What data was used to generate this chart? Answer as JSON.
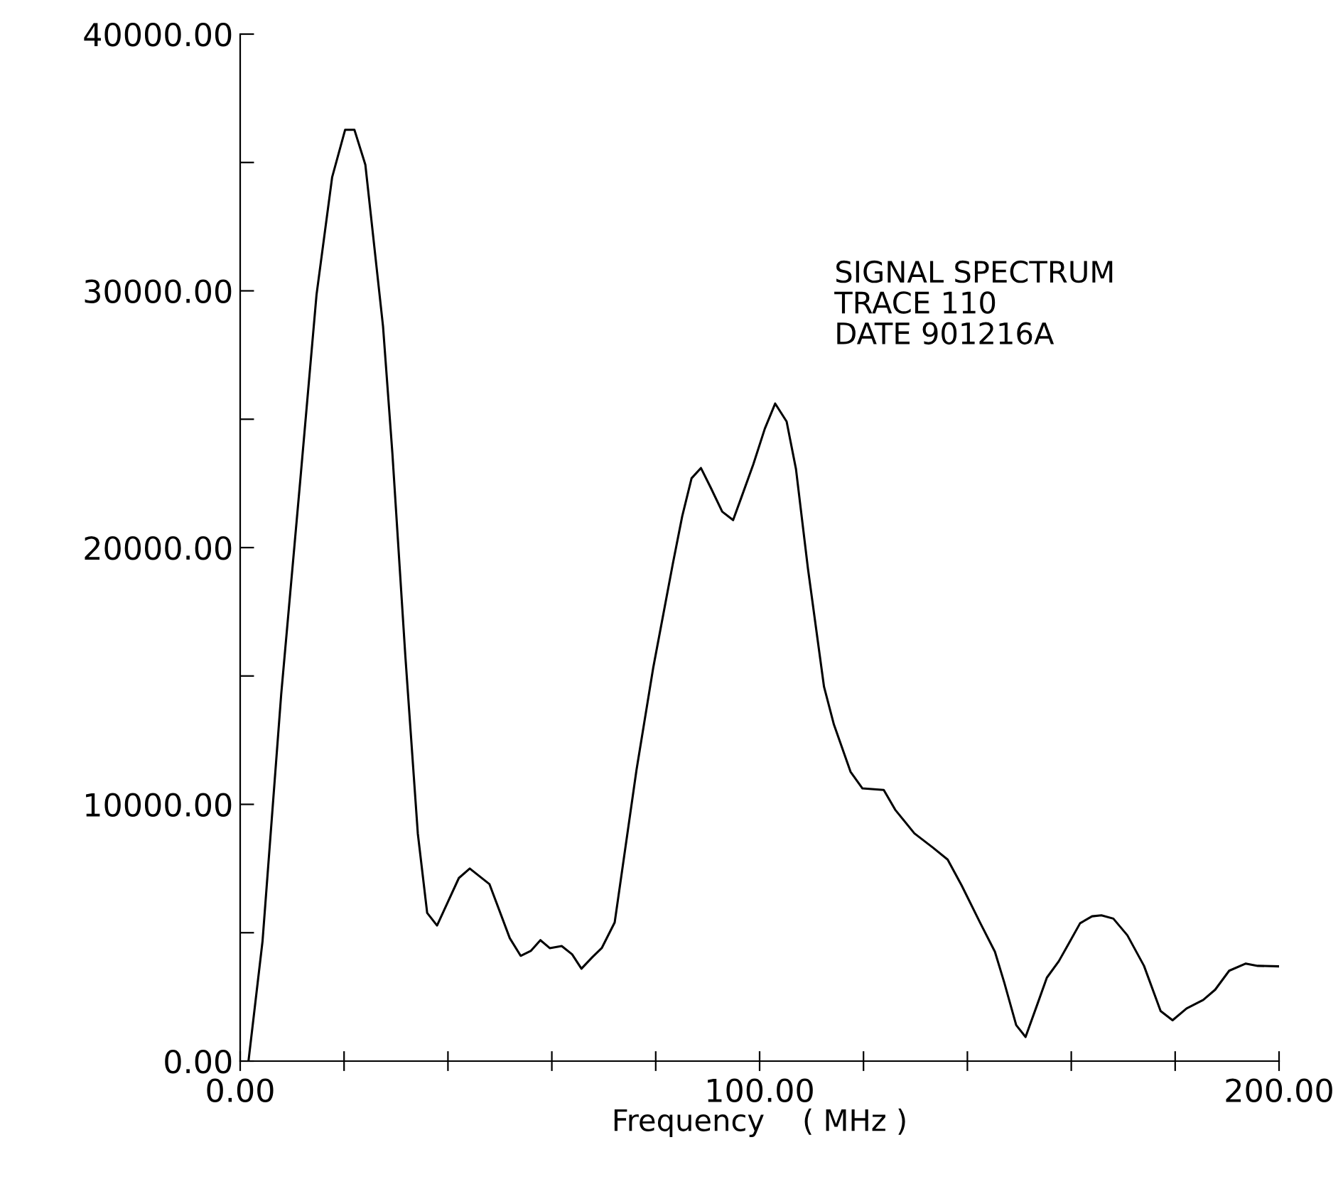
{
  "chart_data": {
    "type": "line",
    "xlabel": "Frequency    ( MHz )",
    "annotations": [
      "SIGNAL SPECTRUM",
      "TRACE 110",
      "DATE 901216A"
    ],
    "xlim": [
      0,
      200
    ],
    "ylim": [
      0,
      40000
    ],
    "xticks": [
      {
        "value": 0,
        "label": "0.00"
      },
      {
        "value": 20,
        "label": null
      },
      {
        "value": 40,
        "label": null
      },
      {
        "value": 60,
        "label": null
      },
      {
        "value": 80,
        "label": null
      },
      {
        "value": 100,
        "label": "100.00"
      },
      {
        "value": 120,
        "label": null
      },
      {
        "value": 140,
        "label": null
      },
      {
        "value": 160,
        "label": null
      },
      {
        "value": 180,
        "label": null
      },
      {
        "value": 200,
        "label": "200.00"
      }
    ],
    "yticks": [
      {
        "value": 0,
        "label": "0.00"
      },
      {
        "value": 5000,
        "label": null
      },
      {
        "value": 10000,
        "label": "10000.00"
      },
      {
        "value": 15000,
        "label": null
      },
      {
        "value": 20000,
        "label": "20000.00"
      },
      {
        "value": 25000,
        "label": null
      },
      {
        "value": 30000,
        "label": "30000.00"
      },
      {
        "value": 35000,
        "label": null
      },
      {
        "value": 40000,
        "label": "40000.00"
      }
    ],
    "grid": false,
    "legend": false,
    "marker": "none",
    "line_style": "solid",
    "series": [
      {
        "color": "#000000",
        "x": [
          1.6,
          4.3,
          7.9,
          11.6,
          14.7,
          17.7,
          20.2,
          22.0,
          24.1,
          27.5,
          29.3,
          31.8,
          34.2,
          36.0,
          37.9,
          42.1,
          44.2,
          48.0,
          51.9,
          54.0,
          56.0,
          57.8,
          59.6,
          61.9,
          63.9,
          65.7,
          67.8,
          69.6,
          72.1,
          76.3,
          79.5,
          83.3,
          85.1,
          86.9,
          88.7,
          90.6,
          92.8,
          94.9,
          96.5,
          98.8,
          101.0,
          103.0,
          105.2,
          107.0,
          109.3,
          112.4,
          114.3,
          117.5,
          119.8,
          123.9,
          126.1,
          129.8,
          133.4,
          136.2,
          138.9,
          142.5,
          145.3,
          147.1,
          149.4,
          151.2,
          153.5,
          155.3,
          157.6,
          159.4,
          161.7,
          164.0,
          165.8,
          168.1,
          170.8,
          174.0,
          177.2,
          179.5,
          182.2,
          185.4,
          187.7,
          190.4,
          193.6,
          195.9,
          199.8
        ],
        "values": [
          0,
          4660,
          14290,
          22690,
          29850,
          34420,
          36270,
          36270,
          34910,
          28620,
          23680,
          15770,
          8860,
          5770,
          5280,
          7130,
          7500,
          6890,
          4790,
          4100,
          4300,
          4710,
          4400,
          4480,
          4160,
          3600,
          4050,
          4400,
          5400,
          11340,
          15300,
          19380,
          21220,
          22700,
          23100,
          22330,
          21400,
          21070,
          21960,
          23250,
          24630,
          25610,
          24910,
          23060,
          19190,
          14580,
          13110,
          11270,
          10620,
          10560,
          9790,
          8870,
          8310,
          7850,
          6840,
          5370,
          4260,
          3060,
          1400,
          940,
          2230,
          3250,
          3890,
          4540,
          5370,
          5640,
          5680,
          5550,
          4900,
          3710,
          1950,
          1590,
          2050,
          2380,
          2780,
          3520,
          3800,
          3710,
          3690
        ]
      }
    ]
  }
}
